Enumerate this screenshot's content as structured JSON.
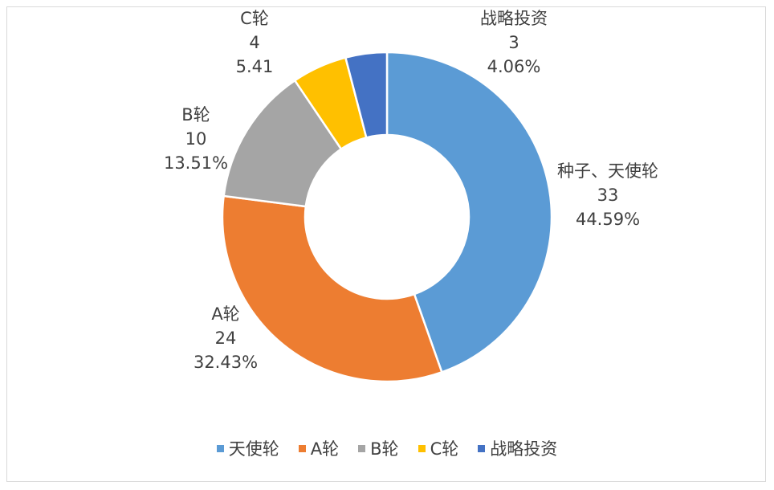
{
  "chart_data": {
    "type": "pie",
    "donut": true,
    "legend_position": "bottom",
    "slices": [
      {
        "name": "种子、天使轮",
        "value": 33,
        "pct_label": "44.59%",
        "color": "#5b9bd5"
      },
      {
        "name": "A轮",
        "value": 24,
        "pct_label": "32.43%",
        "color": "#ed7d31"
      },
      {
        "name": "B轮",
        "value": 10,
        "pct_label": "13.51%",
        "color": "#a5a5a5"
      },
      {
        "name": "C轮",
        "value": 4,
        "pct_label": "5.41",
        "color": "#ffc000"
      },
      {
        "name": "战略投资",
        "value": 3,
        "pct_label": "4.06%",
        "color": "#4472c4"
      }
    ],
    "legend": [
      {
        "label": "天使轮",
        "color": "#5b9bd5"
      },
      {
        "label": "A轮",
        "color": "#ed7d31"
      },
      {
        "label": "B轮",
        "color": "#a5a5a5"
      },
      {
        "label": "C轮",
        "color": "#ffc000"
      },
      {
        "label": "战略投资",
        "color": "#4472c4"
      }
    ]
  }
}
